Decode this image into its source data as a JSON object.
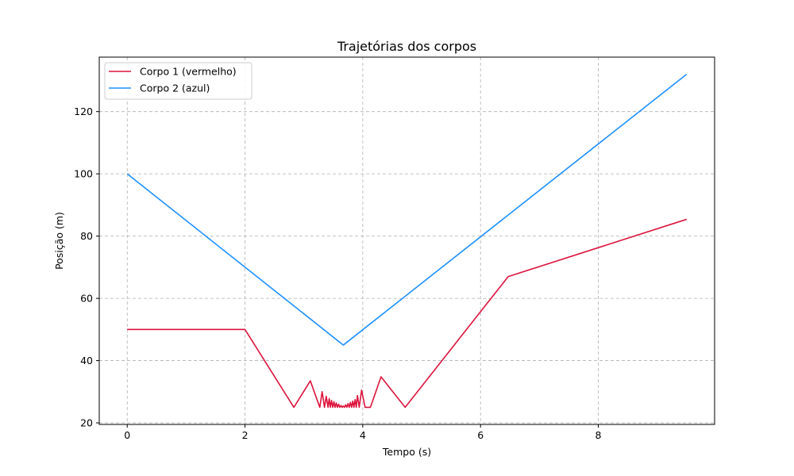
{
  "chart_data": {
    "type": "line",
    "title": "Trajetórias dos corpos",
    "xlabel": "Tempo (s)",
    "ylabel": "Posição (m)",
    "xlim": [
      -0.475,
      9.975
    ],
    "ylim": [
      19.5,
      137.5
    ],
    "xticks": [
      0,
      2,
      4,
      6,
      8
    ],
    "yticks": [
      20,
      40,
      60,
      80,
      100,
      120
    ],
    "grid": true,
    "legend_position": "top-left",
    "series": [
      {
        "name": "Corpo 1 (vermelho)",
        "color": "#dc143c",
        "x": [
          0,
          2.0,
          2.83,
          3.11,
          3.27,
          3.31,
          3.35,
          3.38,
          3.41,
          3.43,
          3.45,
          3.47,
          3.49,
          3.51,
          3.53,
          3.55,
          3.57,
          3.59,
          3.61,
          3.63,
          3.65,
          3.67,
          3.69,
          3.71,
          3.73,
          3.75,
          3.77,
          3.79,
          3.81,
          3.83,
          3.85,
          3.87,
          3.89,
          3.91,
          3.94,
          3.98,
          4.04,
          4.13,
          4.31,
          4.72,
          6.47,
          9.5
        ],
        "y": [
          50,
          50,
          25,
          33.5,
          25,
          30,
          25,
          28.5,
          25,
          27.8,
          25,
          27.2,
          25,
          26.8,
          25,
          26.4,
          25,
          26.0,
          25,
          25.6,
          25,
          25.4,
          25,
          25.8,
          25,
          26.2,
          25,
          26.6,
          25,
          27.0,
          25,
          27.5,
          25,
          28.8,
          25,
          30.5,
          25,
          25,
          34.8,
          25,
          67,
          85.4
        ]
      },
      {
        "name": "Corpo 2 (azul)",
        "color": "#1e90ff",
        "x": [
          0,
          3.67,
          9.5
        ],
        "y": [
          100,
          45,
          132
        ]
      }
    ]
  }
}
